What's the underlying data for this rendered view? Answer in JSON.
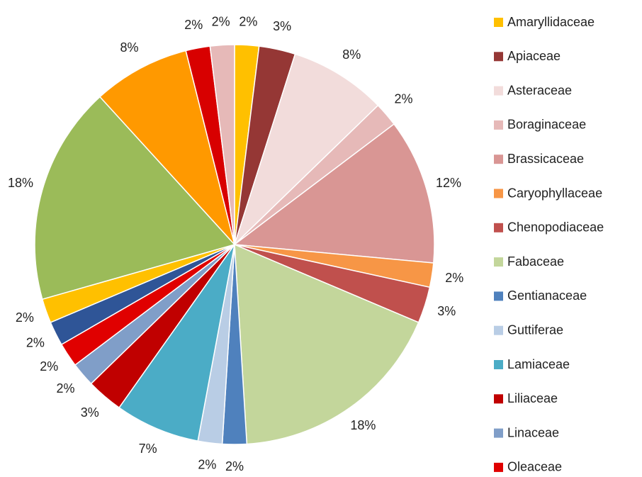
{
  "chart_data": {
    "type": "pie",
    "categories": [
      "Amaryllidaceae",
      "Apiaceae",
      "Asteraceae",
      "Boraginaceae",
      "Brassicaceae",
      "Caryophyllaceae",
      "Chenopodiaceae",
      "Fabaceae",
      "Gentianaceae",
      "Guttiferae",
      "Lamiaceae",
      "Liliaceae",
      "Linaceae",
      "Oleaceae",
      null,
      null,
      null,
      null,
      null,
      null
    ],
    "values": [
      2,
      3,
      8,
      2,
      12,
      2,
      3,
      18,
      2,
      2,
      7,
      3,
      2,
      2,
      2,
      2,
      18,
      8,
      2,
      2
    ],
    "value_labels": [
      "2%",
      "3%",
      "8%",
      "2%",
      "12%",
      "2%",
      "3%",
      "18%",
      "2%",
      "2%",
      "7%",
      "3%",
      "2%",
      "2%",
      "2%",
      "2%",
      "18%",
      "8%",
      "2%",
      "2%"
    ],
    "colors": [
      "#FFC000",
      "#953735",
      "#F2DCDB",
      "#E6B9B8",
      "#D99694",
      "#F79646",
      "#C0504D",
      "#C3D69B",
      "#4F81BD",
      "#B9CDE5",
      "#4BACC6",
      "#C00000",
      "#809EC8",
      "#E00000",
      "#2F5597",
      "#FFC000",
      "#9BBB59",
      "#FF9900",
      "#D80000",
      "#E6B9B8"
    ],
    "legend": "right"
  }
}
